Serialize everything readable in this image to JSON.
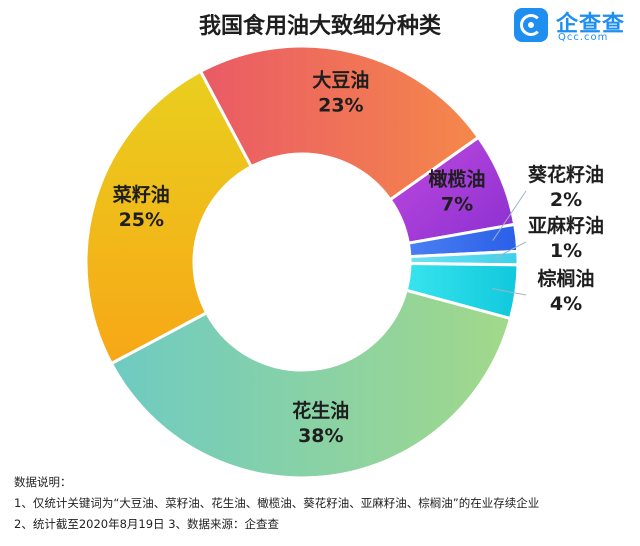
{
  "title": "我国食用油大致细分种类",
  "logo": {
    "name": "企查查",
    "domain": "Qcc.com"
  },
  "chart_data": {
    "type": "pie",
    "title": "我国食用油大致细分种类",
    "categories": [
      "大豆油",
      "橄榄油",
      "葵花籽油",
      "亚麻籽油",
      "棕榈油",
      "花生油",
      "菜籽油"
    ],
    "values": [
      23,
      7,
      2,
      1,
      4,
      38,
      25
    ],
    "value_labels": [
      "23%",
      "7%",
      "2%",
      "1%",
      "4%",
      "38%",
      "25%"
    ],
    "colors": [
      "#ef6a5c",
      "#b03fd9",
      "#2f6ff0",
      "#4fd6f0",
      "#20d8e6",
      "#8ed39a",
      "#f2c21a"
    ],
    "donut": true,
    "legend": "none"
  },
  "notes": {
    "header": "数据说明：",
    "line1": "1、仅统计关键词为“大豆油、菜籽油、花生油、橄榄油、葵花籽油、亚麻籽油、棕榈油”的在业存续企业",
    "line2": "2、统计截至2020年8月19日   3、数据来源：企查查"
  }
}
